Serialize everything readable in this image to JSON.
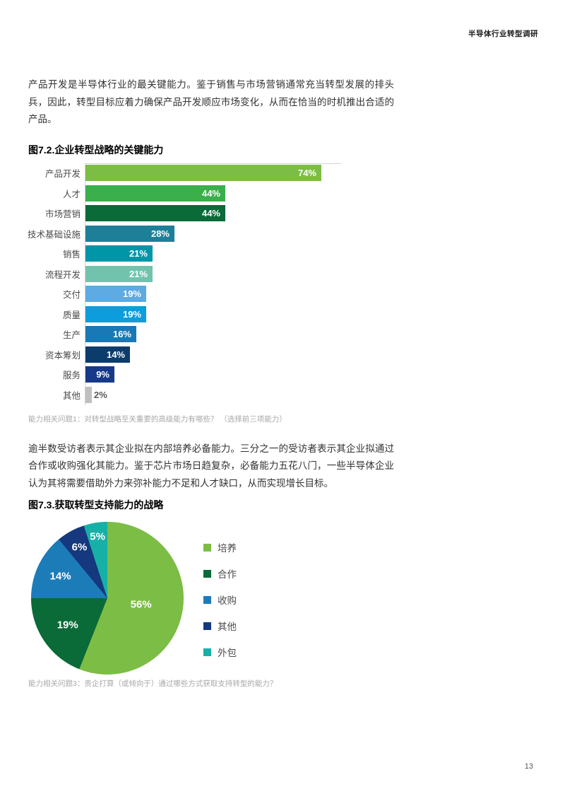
{
  "header": {
    "title": "半导体行业转型调研"
  },
  "page_number": "13",
  "paragraphs": {
    "p1": "产品开发是半导体行业的最关键能力。鉴于销售与市场营销通常充当转型发展的排头兵，因此，转型目标应着力确保产品开发顺应市场变化，从而在恰当的时机推出合适的产品。",
    "p2": "逾半数受访者表示其企业拟在内部培养必备能力。三分之一的受访者表示其企业拟通过合作或收购强化其能力。鉴于芯片市场日趋复杂，必备能力五花八门，一些半导体企业认为其将需要借助外力来弥补能力不足和人才缺口，从而实现增长目标。"
  },
  "figure2": {
    "title": "图7.2.企业转型战略的关键能力",
    "caption": "能力相关问题1：对转型战略至关重要的高级能力有哪些？ （选择前三项能力）"
  },
  "figure3": {
    "title": "图7.3.获取转型支持能力的战略",
    "caption": "能力相关问题3：贵企打算（或倾向于）通过哪些方式获取支持转型的能力？"
  },
  "chart_data": [
    {
      "type": "bar",
      "orientation": "horizontal",
      "title": "图7.2.企业转型战略的关键能力",
      "categories": [
        "产品开发",
        "人才",
        "市场营销",
        "技术基础设施",
        "销售",
        "流程开发",
        "交付",
        "质量",
        "生产",
        "资本筹划",
        "服务",
        "其他"
      ],
      "values": [
        74,
        44,
        44,
        28,
        21,
        21,
        19,
        19,
        16,
        14,
        9,
        2
      ],
      "unit": "%",
      "colors": [
        "#7CBD45",
        "#3AAF4C",
        "#0A6A38",
        "#1E7F98",
        "#0096A8",
        "#72C3AD",
        "#5EAAE2",
        "#0E9DDC",
        "#1879B6",
        "#0C3C6C",
        "#16398A",
        "#BFBFBF"
      ],
      "xlim": [
        0,
        80
      ],
      "grid": false,
      "value_labels": "inside-end, white bold; 2% label outside in gray"
    },
    {
      "type": "pie",
      "title": "图7.3.获取转型支持能力的战略",
      "labels": [
        "培养",
        "合作",
        "收购",
        "其他",
        "外包"
      ],
      "values": [
        56,
        19,
        14,
        6,
        5
      ],
      "unit": "%",
      "colors": [
        "#7CBD45",
        "#0A6A38",
        "#1C7CB8",
        "#15387E",
        "#17B0A6"
      ],
      "start_angle_deg": 0,
      "direction": "clockwise",
      "legend_position": "right"
    }
  ]
}
